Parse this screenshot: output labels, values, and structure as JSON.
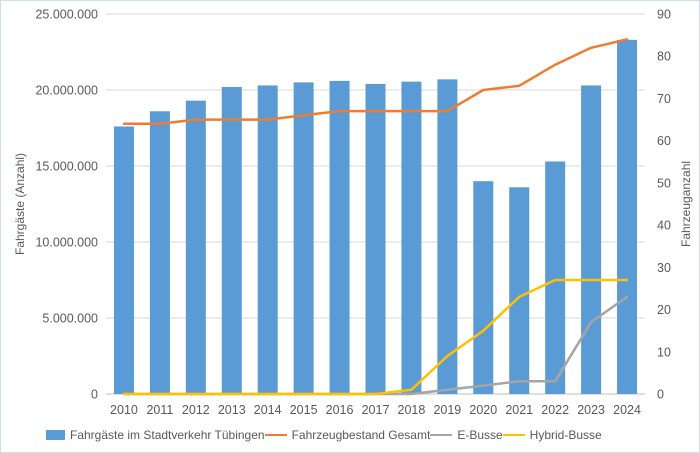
{
  "chart_data": {
    "type": "bar+line combo",
    "title": "",
    "categories": [
      "2010",
      "2011",
      "2012",
      "2013",
      "2014",
      "2015",
      "2016",
      "2017",
      "2018",
      "2019",
      "2020",
      "2021",
      "2022",
      "2023",
      "2024"
    ],
    "left_axis": {
      "label": "Fahrgäste (Anzahl)",
      "min": 0,
      "max": 25000000,
      "ticks": [
        {
          "label": "25.000.000",
          "value": 25000000
        },
        {
          "label": "20.000.000",
          "value": 20000000
        },
        {
          "label": "15.000.000",
          "value": 15000000
        },
        {
          "label": "10.000.000",
          "value": 10000000
        },
        {
          "label": "5.000.000",
          "value": 5000000
        },
        {
          "label": "0",
          "value": 0
        }
      ]
    },
    "right_axis": {
      "label": "Fahrzeuganzahl",
      "min": 0,
      "max": 90,
      "ticks": [
        {
          "label": "90",
          "value": 90
        },
        {
          "label": "80",
          "value": 80
        },
        {
          "label": "70",
          "value": 70
        },
        {
          "label": "60",
          "value": 60
        },
        {
          "label": "50",
          "value": 50
        },
        {
          "label": "40",
          "value": 40
        },
        {
          "label": "30",
          "value": 30
        },
        {
          "label": "20",
          "value": 20
        },
        {
          "label": "10",
          "value": 10
        },
        {
          "label": "0",
          "value": 0
        }
      ]
    },
    "grid": "horizontal",
    "grid_color": "#d9d9d9",
    "axis_line_color": "#bfbfbf",
    "text_color": "#595959",
    "legend_position": "bottom",
    "series": [
      {
        "name": "Fahrgäste im Stadtverkehr Tübingen",
        "type": "bar",
        "axis": "left",
        "color": "#5B9BD5",
        "values": [
          17600000,
          18600000,
          19300000,
          20200000,
          20300000,
          20500000,
          20600000,
          20400000,
          20550000,
          20700000,
          14000000,
          13600000,
          15300000,
          20300000,
          23300000
        ]
      },
      {
        "name": "Fahrzeugbestand Gesamt",
        "type": "line",
        "axis": "right",
        "color": "#ED7D31",
        "values": [
          64,
          64,
          65,
          65,
          65,
          66,
          67,
          67,
          67,
          67,
          72,
          73,
          78,
          82,
          84
        ]
      },
      {
        "name": "E-Busse",
        "type": "line",
        "axis": "right",
        "color": "#A5A5A5",
        "values": [
          0,
          0,
          0,
          0,
          0,
          0,
          0,
          0,
          0,
          1,
          2,
          3,
          3,
          17,
          23
        ]
      },
      {
        "name": "Hybrid-Busse",
        "type": "line",
        "axis": "right",
        "color": "#FFC000",
        "values": [
          0,
          0,
          0,
          0,
          0,
          0,
          0,
          0,
          1,
          9,
          15,
          23,
          27,
          27,
          27
        ]
      }
    ]
  }
}
